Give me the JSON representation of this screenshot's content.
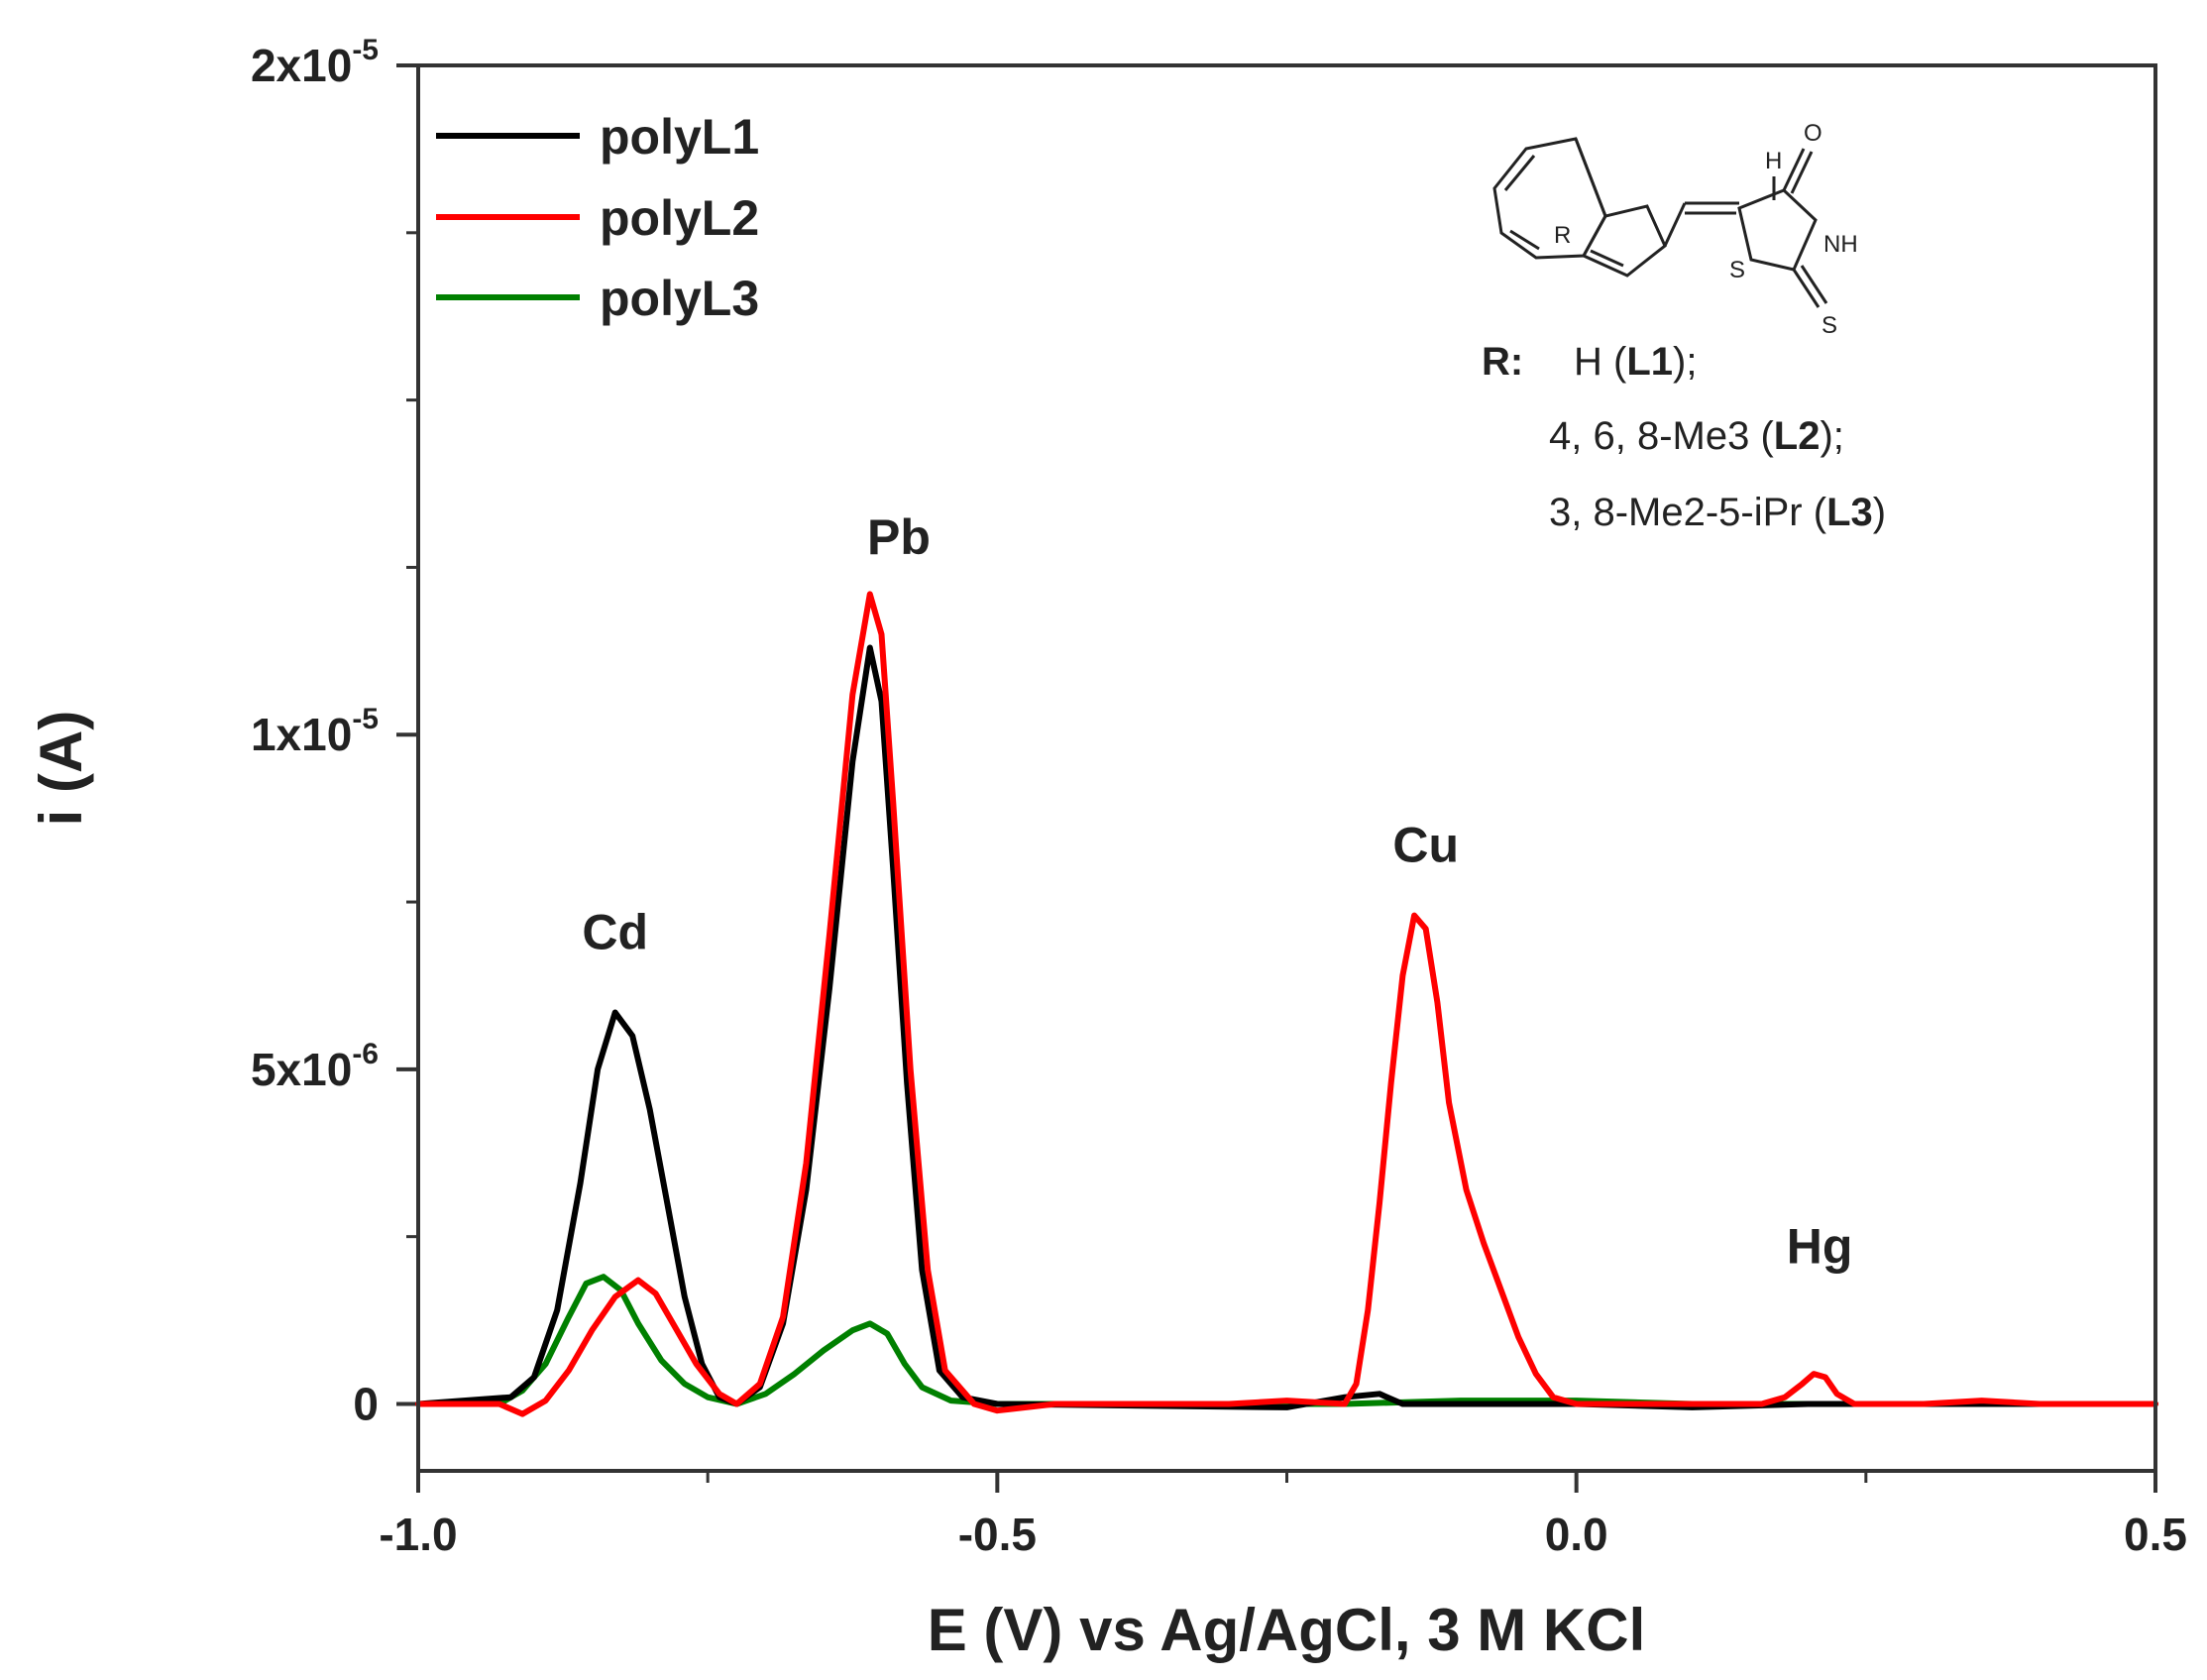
{
  "chart_data": {
    "type": "line",
    "title": "",
    "xlabel": "E (V) vs Ag/AgCl, 3 M KCl",
    "ylabel": "i (A)",
    "xlim": [
      -1.0,
      0.5
    ],
    "ylim": [
      -1e-06,
      2e-05
    ],
    "x_ticks": [
      -1.0,
      -0.5,
      0.0,
      0.5
    ],
    "x_tick_labels": [
      "-1.0",
      "-0.5",
      "0.0",
      "0.5"
    ],
    "y_ticks": [
      0,
      5e-06,
      1e-05,
      2e-05
    ],
    "y_tick_labels": [
      {
        "mantissa": "0",
        "exp": ""
      },
      {
        "mantissa": "5x10",
        "exp": "-6"
      },
      {
        "mantissa": "1x10",
        "exp": "-5"
      },
      {
        "mantissa": "2x10",
        "exp": "-5"
      }
    ],
    "grid": false,
    "legend_position": "top-left",
    "series": [
      {
        "name": "polyL1",
        "color": "#000000",
        "points": [
          [
            -1.0,
            0
          ],
          [
            -0.92,
            1e-07
          ],
          [
            -0.9,
            4e-07
          ],
          [
            -0.88,
            1.4e-06
          ],
          [
            -0.86,
            3.3e-06
          ],
          [
            -0.845,
            5e-06
          ],
          [
            -0.83,
            5.85e-06
          ],
          [
            -0.815,
            5.5e-06
          ],
          [
            -0.8,
            4.4e-06
          ],
          [
            -0.785,
            3e-06
          ],
          [
            -0.77,
            1.6e-06
          ],
          [
            -0.755,
            6e-07
          ],
          [
            -0.74,
            1e-07
          ],
          [
            -0.725,
            0
          ],
          [
            -0.705,
            2.5e-07
          ],
          [
            -0.685,
            1.2e-06
          ],
          [
            -0.665,
            3.2e-06
          ],
          [
            -0.645,
            6.2e-06
          ],
          [
            -0.625,
            9.6e-06
          ],
          [
            -0.61,
            1.13e-05
          ],
          [
            -0.6,
            1.05e-05
          ],
          [
            -0.59,
            8e-06
          ],
          [
            -0.578,
            4.8e-06
          ],
          [
            -0.565,
            2e-06
          ],
          [
            -0.55,
            5e-07
          ],
          [
            -0.53,
            1e-07
          ],
          [
            -0.5,
            0
          ],
          [
            -0.25,
            -5e-08
          ],
          [
            -0.2,
            1e-07
          ],
          [
            -0.17,
            1.5e-07
          ],
          [
            -0.15,
            0
          ],
          [
            0.0,
            0
          ],
          [
            0.1,
            -5e-08
          ],
          [
            0.2,
            0
          ],
          [
            0.3,
            0
          ],
          [
            0.4,
            0
          ],
          [
            0.5,
            0
          ]
        ]
      },
      {
        "name": "polyL2",
        "color": "#ff0000",
        "points": [
          [
            -1.0,
            0
          ],
          [
            -0.93,
            0
          ],
          [
            -0.91,
            -1.5e-07
          ],
          [
            -0.89,
            5e-08
          ],
          [
            -0.87,
            5e-07
          ],
          [
            -0.85,
            1.1e-06
          ],
          [
            -0.83,
            1.6e-06
          ],
          [
            -0.81,
            1.85e-06
          ],
          [
            -0.795,
            1.65e-06
          ],
          [
            -0.78,
            1.2e-06
          ],
          [
            -0.76,
            6e-07
          ],
          [
            -0.74,
            1.5e-07
          ],
          [
            -0.725,
            0
          ],
          [
            -0.705,
            3e-07
          ],
          [
            -0.685,
            1.3e-06
          ],
          [
            -0.665,
            3.6e-06
          ],
          [
            -0.645,
            7e-06
          ],
          [
            -0.625,
            1.06e-05
          ],
          [
            -0.61,
            1.21e-05
          ],
          [
            -0.6,
            1.15e-05
          ],
          [
            -0.59,
            9e-06
          ],
          [
            -0.575,
            5e-06
          ],
          [
            -0.56,
            2e-06
          ],
          [
            -0.545,
            5e-07
          ],
          [
            -0.52,
            0
          ],
          [
            -0.5,
            -1e-07
          ],
          [
            -0.45,
            0
          ],
          [
            -0.3,
            0
          ],
          [
            -0.25,
            5e-08
          ],
          [
            -0.2,
            0
          ],
          [
            -0.19,
            3e-07
          ],
          [
            -0.18,
            1.4e-06
          ],
          [
            -0.17,
            3e-06
          ],
          [
            -0.16,
            4.8e-06
          ],
          [
            -0.15,
            6.4e-06
          ],
          [
            -0.14,
            7.3e-06
          ],
          [
            -0.13,
            7.1e-06
          ],
          [
            -0.12,
            6e-06
          ],
          [
            -0.11,
            4.5e-06
          ],
          [
            -0.095,
            3.2e-06
          ],
          [
            -0.08,
            2.4e-06
          ],
          [
            -0.065,
            1.7e-06
          ],
          [
            -0.05,
            1e-06
          ],
          [
            -0.035,
            4.5e-07
          ],
          [
            -0.02,
            1e-07
          ],
          [
            0.0,
            0
          ],
          [
            0.1,
            0
          ],
          [
            0.16,
            0
          ],
          [
            0.18,
            1e-07
          ],
          [
            0.195,
            3e-07
          ],
          [
            0.205,
            4.5e-07
          ],
          [
            0.215,
            4e-07
          ],
          [
            0.225,
            1.5e-07
          ],
          [
            0.24,
            0
          ],
          [
            0.3,
            0
          ],
          [
            0.35,
            5e-08
          ],
          [
            0.4,
            0
          ],
          [
            0.5,
            0
          ]
        ]
      },
      {
        "name": "polyL3",
        "color": "#008000",
        "points": [
          [
            -1.0,
            0
          ],
          [
            -0.93,
            0
          ],
          [
            -0.91,
            2e-07
          ],
          [
            -0.89,
            6e-07
          ],
          [
            -0.87,
            1.3e-06
          ],
          [
            -0.855,
            1.8e-06
          ],
          [
            -0.84,
            1.9e-06
          ],
          [
            -0.825,
            1.7e-06
          ],
          [
            -0.81,
            1.2e-06
          ],
          [
            -0.79,
            6.5e-07
          ],
          [
            -0.77,
            3e-07
          ],
          [
            -0.75,
            1e-07
          ],
          [
            -0.725,
            0
          ],
          [
            -0.7,
            1.5e-07
          ],
          [
            -0.675,
            4.5e-07
          ],
          [
            -0.65,
            8e-07
          ],
          [
            -0.625,
            1.1e-06
          ],
          [
            -0.61,
            1.2e-06
          ],
          [
            -0.595,
            1.05e-06
          ],
          [
            -0.58,
            6e-07
          ],
          [
            -0.565,
            2.5e-07
          ],
          [
            -0.54,
            5e-08
          ],
          [
            -0.5,
            0
          ],
          [
            -0.3,
            0
          ],
          [
            -0.2,
            0
          ],
          [
            -0.1,
            5e-08
          ],
          [
            0.0,
            5e-08
          ],
          [
            0.1,
            0
          ],
          [
            0.2,
            0
          ],
          [
            0.3,
            0
          ],
          [
            0.4,
            0
          ],
          [
            0.5,
            0
          ]
        ]
      }
    ],
    "annotations": [
      {
        "text": "Cd",
        "x": -0.83,
        "y": 6.8e-06
      },
      {
        "text": "Pb",
        "x": -0.585,
        "y": 1.27e-05
      },
      {
        "text": "Cu",
        "x": -0.13,
        "y": 8.1e-06
      },
      {
        "text": "Hg",
        "x": 0.21,
        "y": 2.1e-06
      }
    ]
  },
  "inset": {
    "atom_labels": [
      "H",
      "O",
      "R",
      "NH",
      "S",
      "S"
    ],
    "r_label": "R:",
    "r_lines": [
      [
        {
          "t": "H (",
          "b": false
        },
        {
          "t": "L1",
          "b": true
        },
        {
          "t": ");",
          "b": false
        }
      ],
      [
        {
          "t": "4, 6, 8-Me3 (",
          "b": false
        },
        {
          "t": "L2",
          "b": true
        },
        {
          "t": ");",
          "b": false
        }
      ],
      [
        {
          "t": "3, 8-Me2-5-iPr (",
          "b": false
        },
        {
          "t": "L3",
          "b": true
        },
        {
          "t": ")",
          "b": false
        }
      ]
    ]
  }
}
